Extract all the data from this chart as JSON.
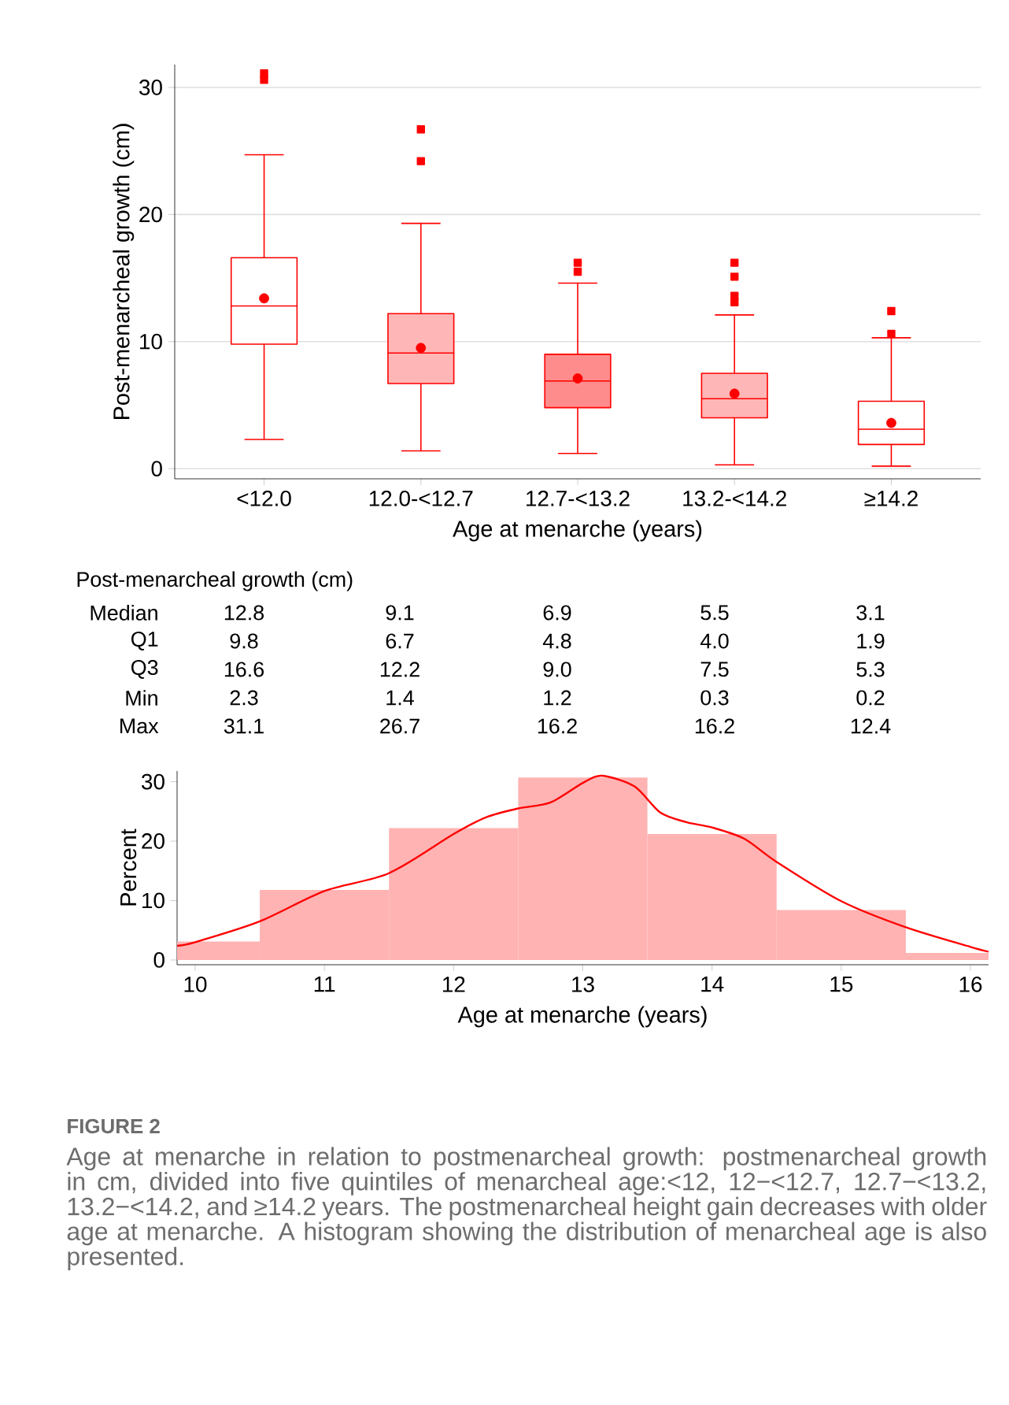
{
  "chart_data": [
    {
      "type": "box",
      "xlabel": "Age at menarche (years)",
      "ylabel": "Post-menarcheal growth (cm)",
      "categories": [
        "<12.0",
        "12.0-<12.7",
        "12.7-<13.2",
        "13.2-<14.2",
        "≥14.2"
      ],
      "color": "#ff0000",
      "colors": [
        "#ffffff",
        "#ffb6b6",
        "#ff8c8c",
        "#ffb6b6",
        "#ffffff"
      ],
      "boxes": [
        {
          "low": 2.3,
          "q1": 9.8,
          "median": 12.8,
          "q3": 16.6,
          "high": 24.7,
          "mean": 13.4,
          "outliers": [
            30.6,
            31.1
          ]
        },
        {
          "low": 1.4,
          "q1": 6.7,
          "median": 9.1,
          "q3": 12.2,
          "high": 19.3,
          "mean": 9.5,
          "outliers": [
            24.2,
            26.7
          ]
        },
        {
          "low": 1.2,
          "q1": 4.8,
          "median": 6.9,
          "q3": 9.0,
          "high": 14.6,
          "mean": 7.1,
          "outliers": [
            15.5,
            16.2
          ]
        },
        {
          "low": 0.3,
          "q1": 4.0,
          "median": 5.5,
          "q3": 7.5,
          "high": 12.1,
          "mean": 5.9,
          "outliers": [
            13.1,
            13.6,
            15.1,
            16.2
          ]
        },
        {
          "low": 0.2,
          "q1": 1.9,
          "median": 3.1,
          "q3": 5.3,
          "high": 10.3,
          "mean": 3.6,
          "outliers": [
            10.6,
            12.4
          ]
        }
      ],
      "ylim": [
        -0.8,
        31.8
      ],
      "yticks": [
        0,
        10,
        20,
        30
      ],
      "grid": "y"
    },
    {
      "type": "other",
      "title": "Post-menarcheal growth (cm)",
      "annotations": [
        "Median",
        "12.8",
        "9.1",
        "6.9",
        "5.5",
        "3.1",
        "Q1",
        "9.8",
        "6.7",
        "4.8",
        "4.0",
        "1.9",
        "Q3",
        "16.6",
        "12.2",
        "9.0",
        "7.5",
        "5.3",
        "Min",
        "2.3",
        "1.4",
        "1.2",
        "0.3",
        "0.2",
        "Max",
        "31.1",
        "26.7",
        "16.2",
        "16.2",
        "12.4"
      ]
    },
    {
      "type": "histogram",
      "xlabel": "Age at menarche (years)",
      "ylabel": "Percent",
      "bins": [
        9.86,
        10.5,
        11.5,
        12.5,
        13.5,
        14.5,
        15.5,
        16.14
      ],
      "values": [
        3.1,
        11.8,
        22.2,
        30.7,
        21.2,
        8.4,
        1.2
      ],
      "color": "#ffb3b3",
      "series": [
        {
          "type": "line",
          "color": "#ff0000",
          "x": [
            9.86,
            10,
            10.5,
            11,
            11.5,
            12,
            12.25,
            12.5,
            12.75,
            13,
            13.15,
            13.4,
            13.6,
            13.8,
            14,
            14.25,
            14.5,
            15,
            15.5,
            16,
            16.14
          ],
          "values": [
            2.4,
            3.0,
            6.5,
            11.6,
            14.6,
            21.2,
            24.0,
            25.5,
            26.5,
            29.8,
            31.0,
            29.2,
            24.8,
            23.2,
            22.3,
            20.4,
            16.5,
            9.9,
            5.5,
            2.2,
            1.4
          ]
        }
      ],
      "xlim": [
        9.86,
        16.14
      ],
      "ylim": [
        -0.8,
        31.8
      ],
      "xticks": [
        10,
        11,
        12,
        13,
        14,
        15,
        16
      ],
      "yticks": [
        0,
        10,
        20,
        30
      ],
      "annotations": [
        "FIGURE 2",
        "Age at menarche in relation to postmenarcheal growth: postmenarcheal growth in cm, divided into five quintiles of menarcheal age:<12, 12−<12.7, 12.7−<13.2, 13.2−<14.2, and ≥14.2 years. The postmenarcheal height gain decreases with older age at menarche. A histogram showing the distribution of menarcheal age is also presented."
      ]
    }
  ]
}
